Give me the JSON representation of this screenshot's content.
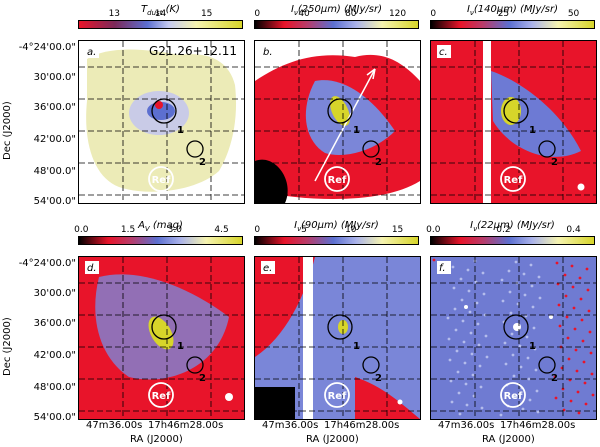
{
  "source_label": "G21.26+12.11",
  "colors": {
    "red": "#e8142a",
    "blue": "#5c6fd0",
    "paleyellow": "#f5f3b0",
    "yellow": "#d7d52a",
    "white": "#ffffff",
    "black": "#000000"
  },
  "panels": [
    {
      "letter": "a.",
      "title": "T_dust (K)",
      "ticks": [
        "13",
        "14",
        "15"
      ],
      "colormap": "temperature"
    },
    {
      "letter": "b.",
      "title": "I_ν(250μm) (MJy/sr)",
      "ticks": [
        "0",
        "40",
        "80",
        "120"
      ],
      "colormap": "intensity"
    },
    {
      "letter": "c.",
      "title": "I_ν(140μm) (MJy/sr)",
      "ticks": [
        "0",
        "25",
        "50"
      ],
      "colormap": "intensity"
    },
    {
      "letter": "d.",
      "title": "A_V (mag)",
      "ticks": [
        "0.0",
        "1.5",
        "3.0",
        "4.5"
      ],
      "colormap": "intensity"
    },
    {
      "letter": "e.",
      "title": "I_ν(90μm) (MJy/sr)",
      "ticks": [
        "0",
        "5",
        "10",
        "15"
      ],
      "colormap": "intensity"
    },
    {
      "letter": "f.",
      "title": "I_ν(22μm) (MJy/sr)",
      "ticks": [
        "0.0",
        "0.2",
        "0.4"
      ],
      "colormap": "intensity"
    }
  ],
  "markers": {
    "one": "1",
    "two": "2",
    "ref": "Ref"
  },
  "axes": {
    "dec_title": "Dec (J2000)",
    "ra_title": "RA (J2000)",
    "dec_ticks": [
      "-4°24'00.0\"",
      "30'00.0\"",
      "36'00.0\"",
      "42'00.0\"",
      "48'00.0\"",
      "54'00.0\""
    ],
    "ra_ticks": [
      "47m36.00s",
      "17h46m28.00s"
    ]
  }
}
